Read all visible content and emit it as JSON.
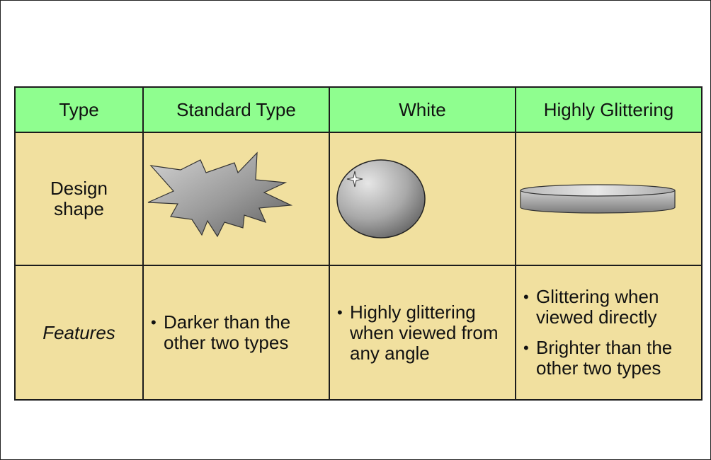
{
  "header": {
    "type_label": "Type",
    "columns": [
      "Standard Type",
      "White",
      "Highly Glittering"
    ]
  },
  "rows": {
    "design_label_line1": "Design",
    "design_label_line2": "shape",
    "features_label": "Features"
  },
  "features": {
    "standard": [
      "Darker than the other two types"
    ],
    "white": [
      "Highly glittering when viewed from any angle"
    ],
    "glittering": [
      "Glittering when viewed directly",
      "Brighter than the other two types"
    ]
  },
  "bullet_glyph": "•",
  "colors": {
    "header_bg": "#8ffe8f",
    "body_bg": "#f1e09f",
    "border": "#1c1c1c",
    "shape_gray": "#a8a8a8"
  },
  "icons": [
    "starburst-shape-icon",
    "sphere-shape-icon",
    "disc-shape-icon",
    "sparkle-icon"
  ]
}
